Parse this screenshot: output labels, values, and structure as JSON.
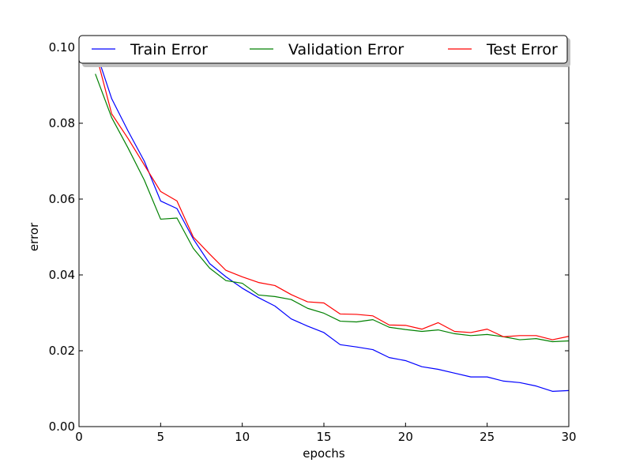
{
  "chart_data": {
    "type": "line",
    "xlabel": "epochs",
    "ylabel": "error",
    "xlim": [
      0,
      30
    ],
    "ylim": [
      0.0,
      0.1
    ],
    "grid": false,
    "legend_placement": "top",
    "x": [
      1,
      2,
      3,
      4,
      5,
      6,
      7,
      8,
      9,
      10,
      11,
      12,
      13,
      14,
      15,
      16,
      17,
      18,
      19,
      20,
      21,
      22,
      23,
      24,
      25,
      26,
      27,
      28,
      29,
      30
    ],
    "series": [
      {
        "name": "Train Error",
        "color": "#0000ff",
        "values": [
          0.0995,
          0.0865,
          0.078,
          0.07,
          0.0595,
          0.0575,
          0.0495,
          0.043,
          0.0395,
          0.0365,
          0.034,
          0.0318,
          0.0284,
          0.0265,
          0.0248,
          0.0216,
          0.021,
          0.0203,
          0.0182,
          0.0174,
          0.0158,
          0.0151,
          0.0141,
          0.0131,
          0.0131,
          0.012,
          0.0116,
          0.0107,
          0.0093,
          0.0095
        ]
      },
      {
        "name": "Validation Error",
        "color": "#008000",
        "values": [
          0.093,
          0.0815,
          0.0735,
          0.065,
          0.0547,
          0.055,
          0.047,
          0.0418,
          0.0385,
          0.0378,
          0.0347,
          0.0343,
          0.0335,
          0.0312,
          0.0299,
          0.0278,
          0.0276,
          0.0282,
          0.0262,
          0.0256,
          0.0251,
          0.0255,
          0.0245,
          0.024,
          0.0243,
          0.0237,
          0.0229,
          0.0232,
          0.0224,
          0.0226
        ]
      },
      {
        "name": "Test Error",
        "color": "#ff0000",
        "values": [
          0.099,
          0.0825,
          0.076,
          0.069,
          0.062,
          0.0595,
          0.05,
          0.0455,
          0.0412,
          0.0395,
          0.038,
          0.0372,
          0.0348,
          0.0329,
          0.0326,
          0.0297,
          0.0296,
          0.0292,
          0.0268,
          0.0267,
          0.0257,
          0.0274,
          0.0251,
          0.0248,
          0.0257,
          0.0237,
          0.024,
          0.024,
          0.0229,
          0.0238
        ]
      }
    ],
    "x_ticks": [
      {
        "value": 0,
        "label": "0"
      },
      {
        "value": 5,
        "label": "5"
      },
      {
        "value": 10,
        "label": "10"
      },
      {
        "value": 15,
        "label": "15"
      },
      {
        "value": 20,
        "label": "20"
      },
      {
        "value": 25,
        "label": "25"
      },
      {
        "value": 30,
        "label": "30"
      }
    ],
    "y_ticks": [
      {
        "value": 0.0,
        "label": "0.00"
      },
      {
        "value": 0.02,
        "label": "0.02"
      },
      {
        "value": 0.04,
        "label": "0.04"
      },
      {
        "value": 0.06,
        "label": "0.06"
      },
      {
        "value": 0.08,
        "label": "0.08"
      },
      {
        "value": 0.1,
        "label": "0.10"
      }
    ]
  }
}
